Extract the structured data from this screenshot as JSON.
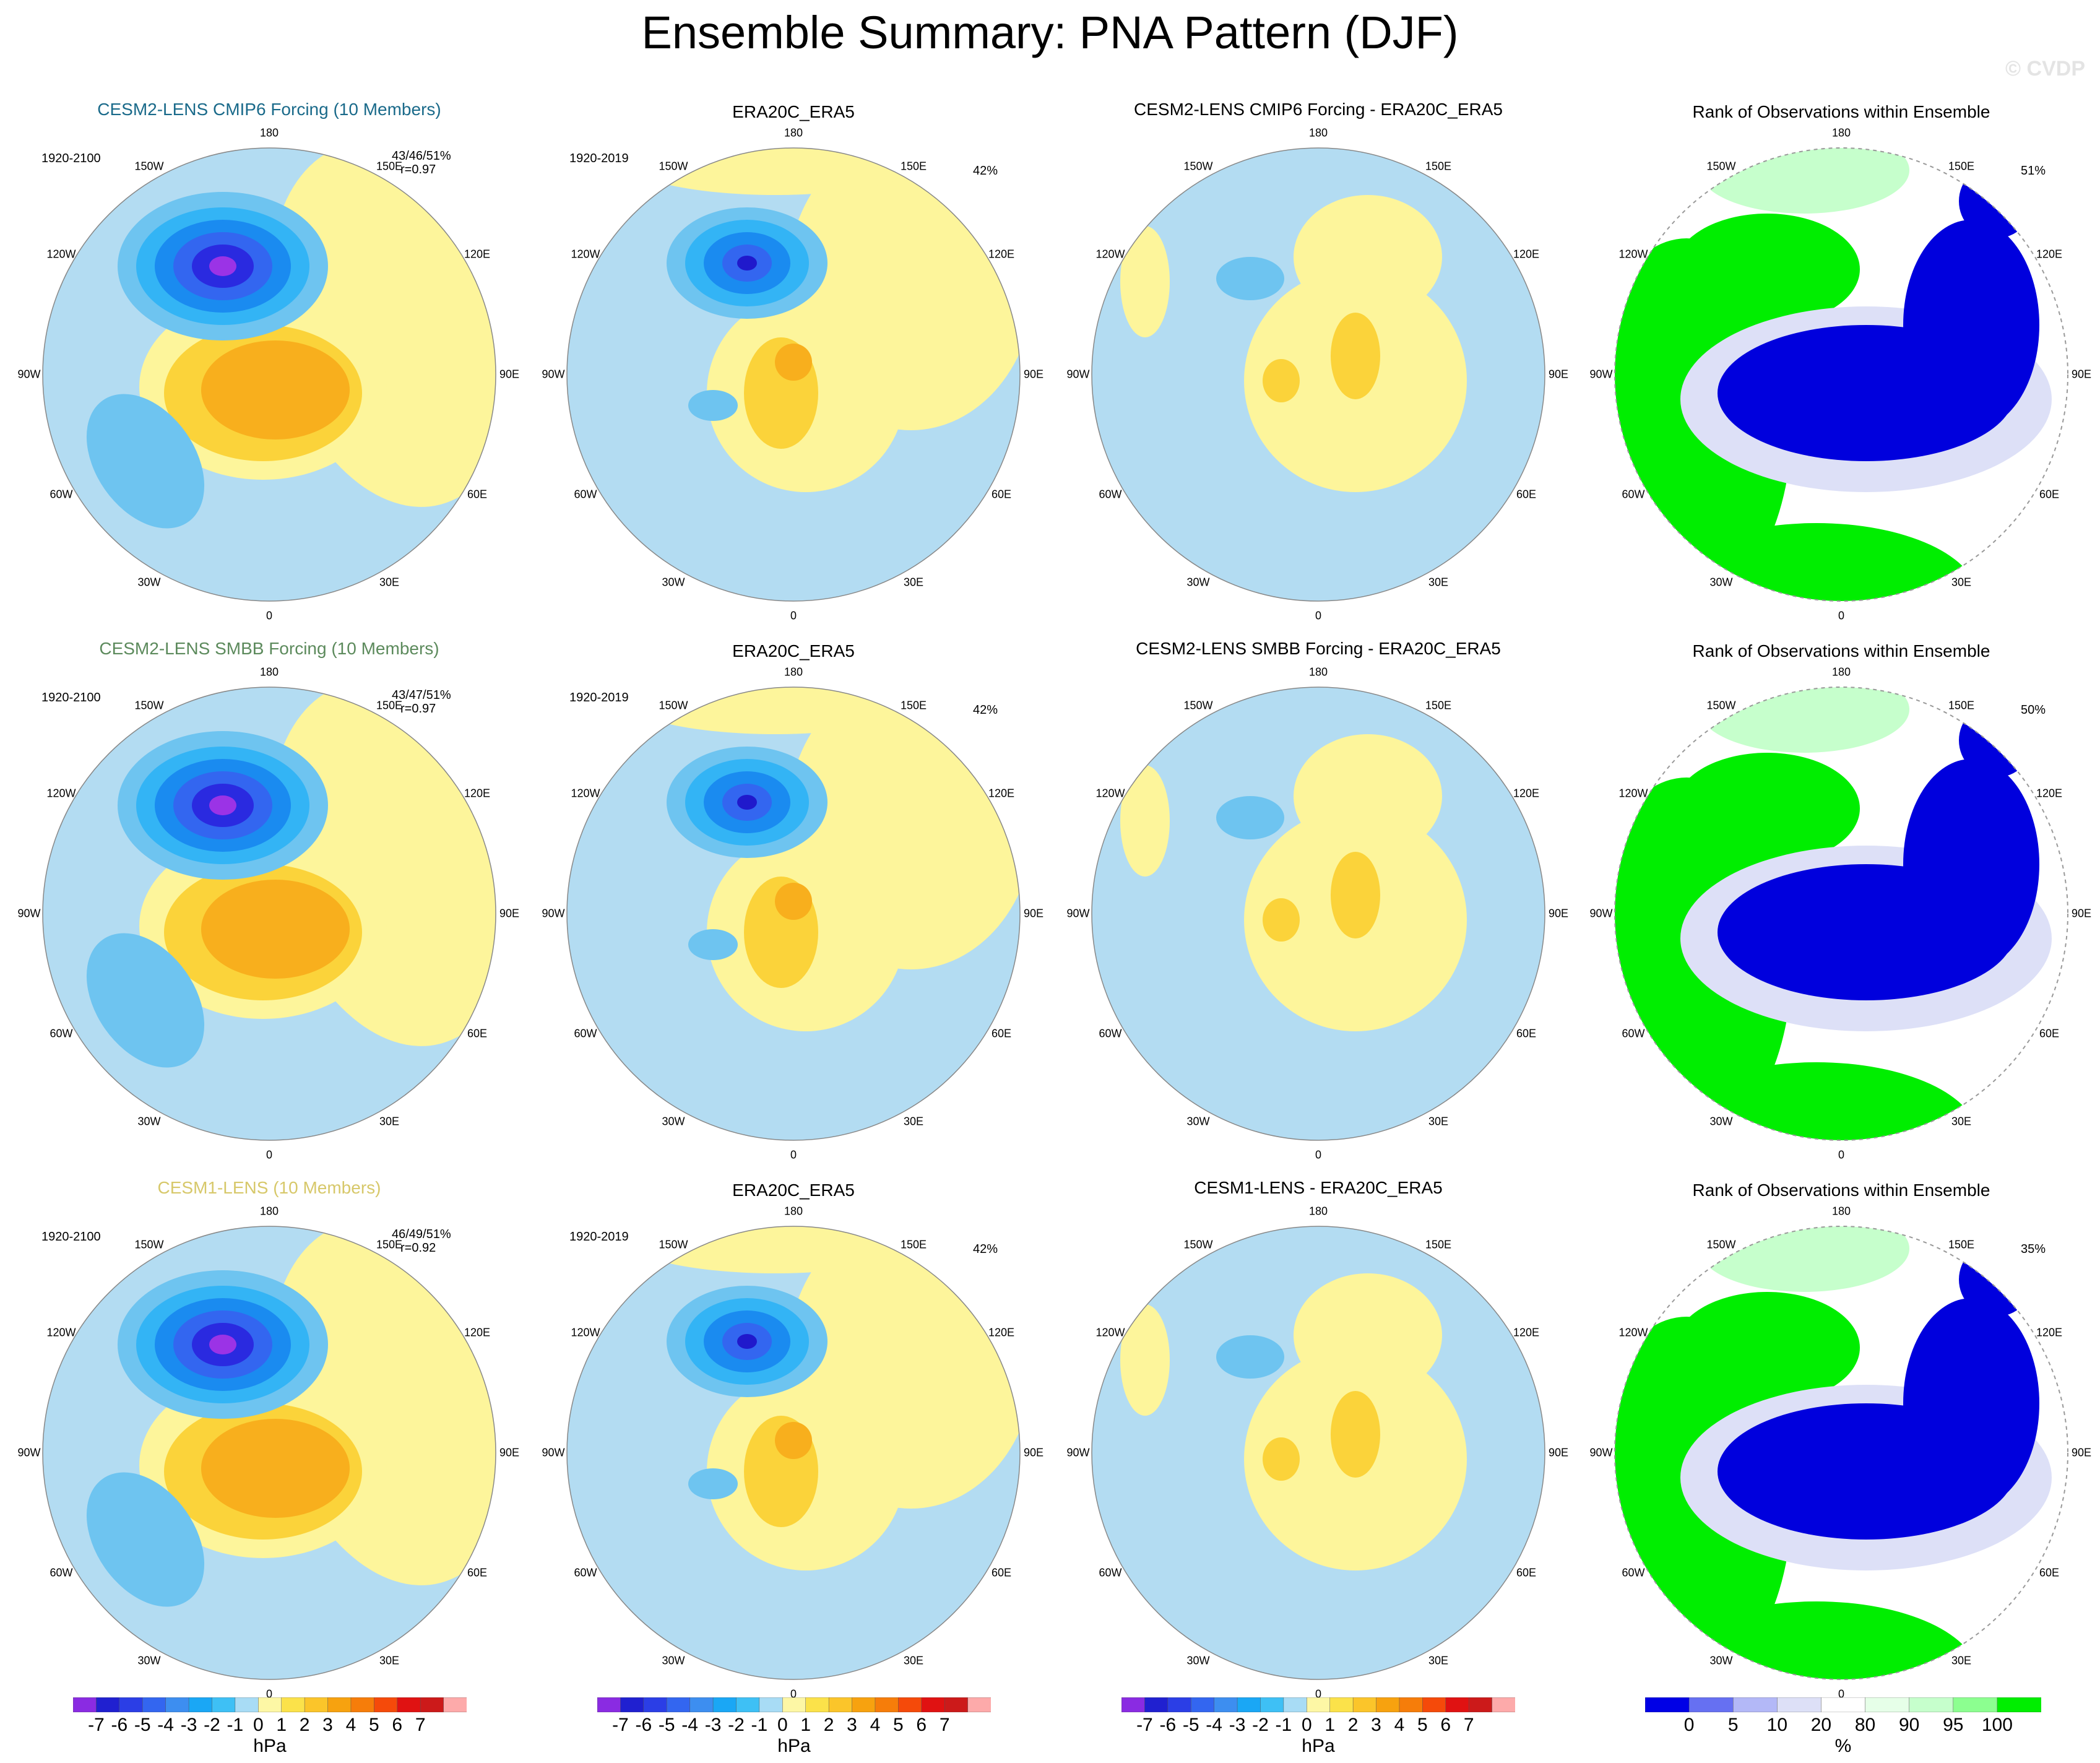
{
  "title": "Ensemble Summary: PNA Pattern (DJF)",
  "copyright": "© CVDP",
  "lon_labels": [
    "180",
    "150E",
    "120E",
    "90E",
    "60E",
    "30E",
    "0",
    "30W",
    "60W",
    "90W",
    "120W",
    "150W"
  ],
  "colors": {
    "neg1": "#b3dcf2",
    "neg2": "#6ec4f0",
    "neg3": "#33b4f5",
    "neg4": "#1a8bf0",
    "neg5": "#3366f0",
    "neg6": "#2a2ae0",
    "neg7": "#2019cc",
    "neg8": "#9b33e6",
    "pos1": "#fdf59b",
    "pos2": "#fbd33a",
    "pos3": "#f8af1d",
    "pos4": "#f68c0f",
    "rank_blue": "#0000dd",
    "rank_green": "#00ee00",
    "rank_lightgreen": "#c6ffcc",
    "rank_lav": "#dde0f7"
  },
  "rows": [
    {
      "ens": {
        "title": "CESM2-LENS CMIP6 Forcing (10 Members)",
        "title_color": "#1a6a8a",
        "years": "1920-2100",
        "stats": "43/46/51%",
        "corr": "r=0.97"
      },
      "obs": {
        "title": "ERA20C_ERA5",
        "years": "1920-2019",
        "pct": "42%"
      },
      "diff": {
        "title": "CESM2-LENS CMIP6 Forcing - ERA20C_ERA5"
      },
      "rank": {
        "title": "Rank of Observations within Ensemble",
        "pct": "51%"
      }
    },
    {
      "ens": {
        "title": "CESM2-LENS SMBB Forcing (10 Members)",
        "title_color": "#5c8a5c",
        "years": "1920-2100",
        "stats": "43/47/51%",
        "corr": "r=0.97"
      },
      "obs": {
        "title": "ERA20C_ERA5",
        "years": "1920-2019",
        "pct": "42%"
      },
      "diff": {
        "title": "CESM2-LENS SMBB Forcing - ERA20C_ERA5"
      },
      "rank": {
        "title": "Rank of Observations within Ensemble",
        "pct": "50%"
      }
    },
    {
      "ens": {
        "title": "CESM1-LENS (10 Members)",
        "title_color": "#d7c86a",
        "years": "1920-2100",
        "stats": "46/49/51%",
        "corr": "r=0.92"
      },
      "obs": {
        "title": "ERA20C_ERA5",
        "years": "1920-2019",
        "pct": "42%"
      },
      "diff": {
        "title": "CESM1-LENS - ERA20C_ERA5"
      },
      "rank": {
        "title": "Rank of Observations within Ensemble",
        "pct": "35%"
      }
    }
  ],
  "colorbar_hpa": {
    "labels": [
      "-7",
      "-6",
      "-5",
      "-4",
      "-3",
      "-2",
      "-1",
      "0",
      "1",
      "2",
      "3",
      "4",
      "5",
      "6",
      "7"
    ],
    "colors": [
      "#8a2be2",
      "#2020d0",
      "#2b3ee6",
      "#3366f0",
      "#3d8ef0",
      "#1aa7f5",
      "#3ec0f5",
      "#a8dcf5",
      "#fdf7a5",
      "#fbe24a",
      "#fbc52a",
      "#f7a20f",
      "#f67d0a",
      "#f54a0a",
      "#e01212",
      "#cc1a1a",
      "#fdaaaa"
    ],
    "unit": "hPa"
  },
  "colorbar_rank": {
    "labels": [
      "0",
      "5",
      "10",
      "20",
      "80",
      "90",
      "95",
      "100"
    ],
    "colors": [
      "#0000e6",
      "#6670f2",
      "#b3b8f7",
      "#dde0f7",
      "#ffffff",
      "#e6ffe8",
      "#c6ffcc",
      "#8cff90",
      "#00ee00"
    ],
    "unit": "%"
  }
}
